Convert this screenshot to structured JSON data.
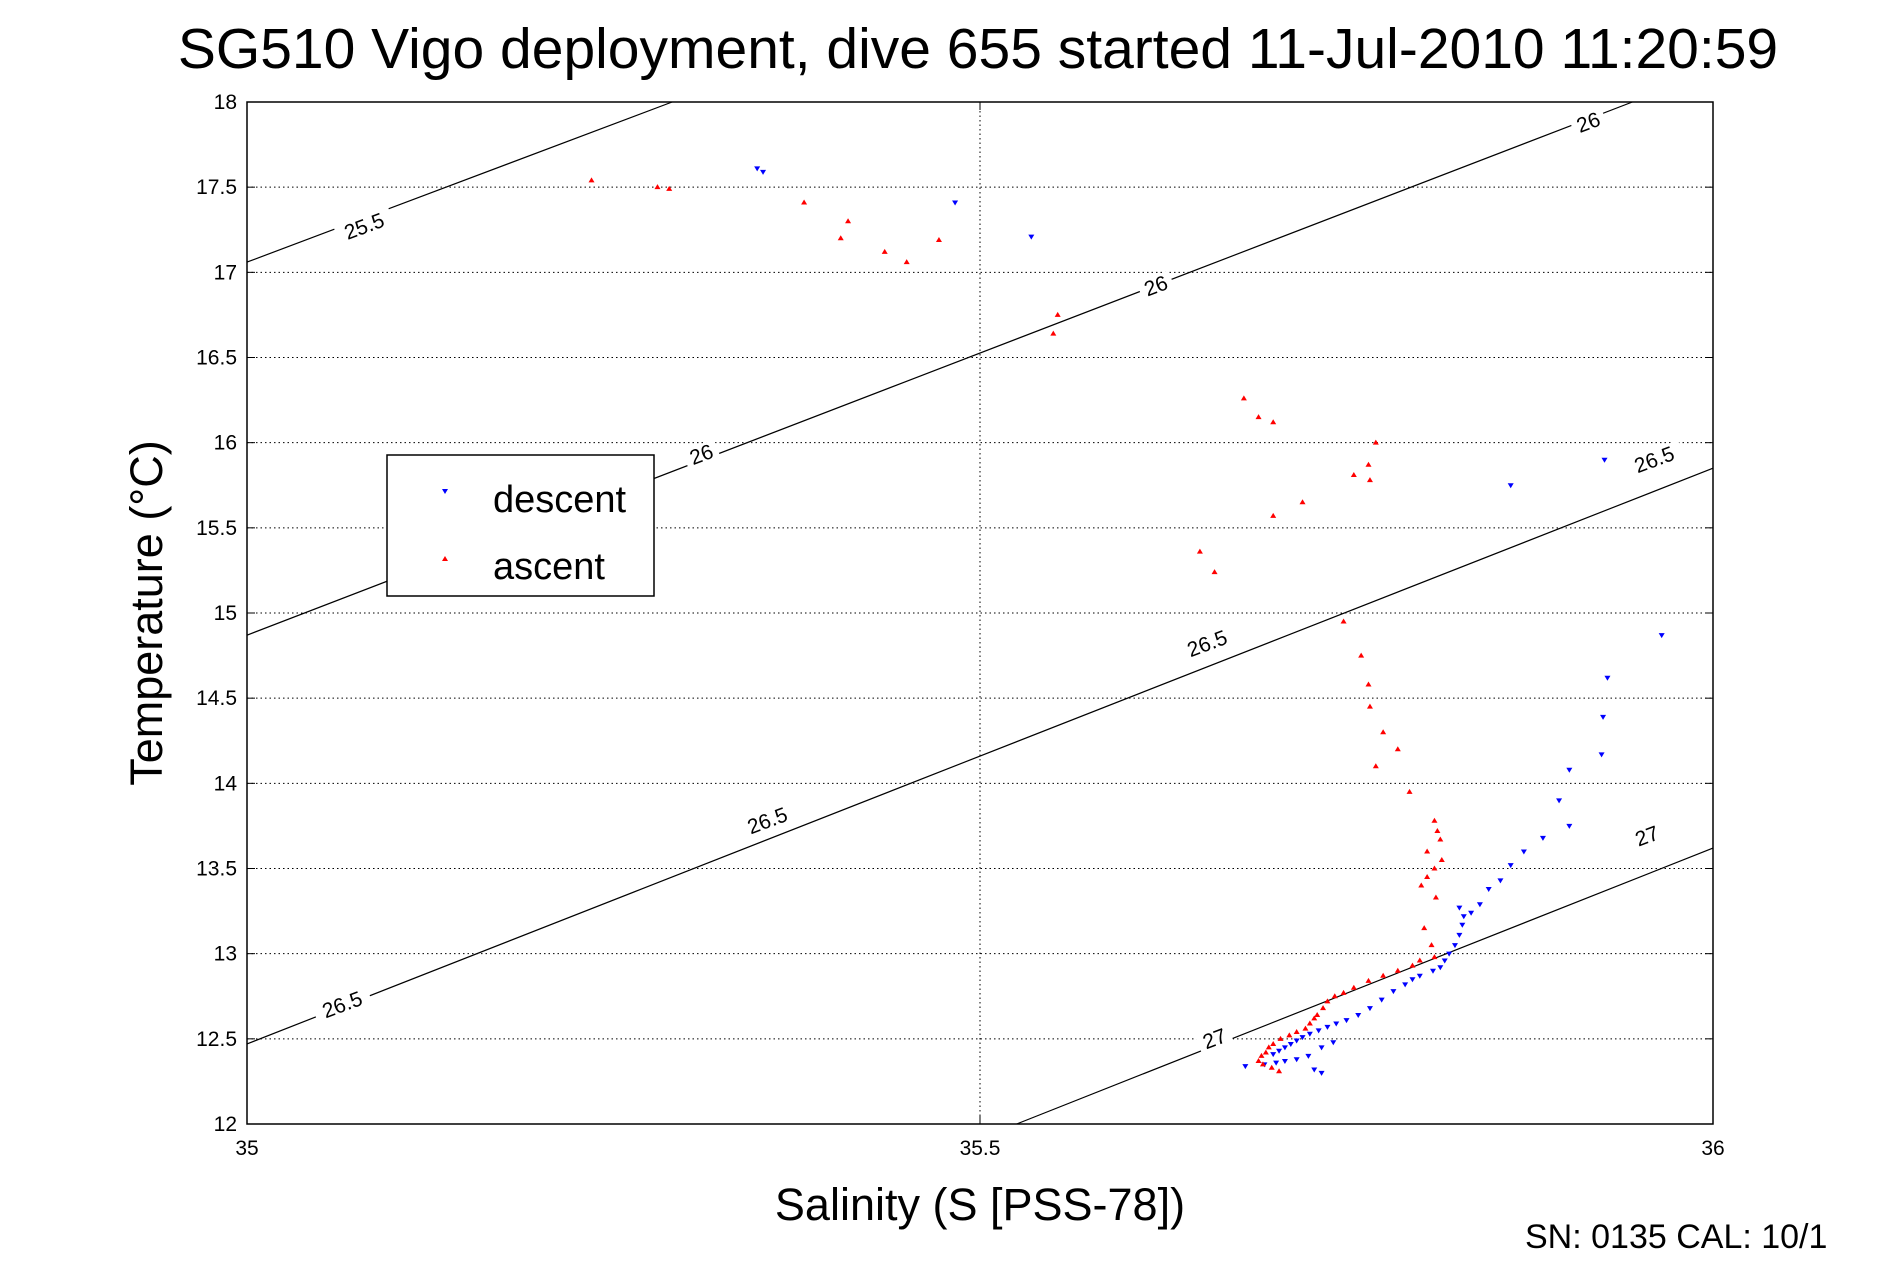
{
  "chart_data": {
    "type": "scatter",
    "title": "SG510 Vigo deployment, dive 655 started 11-Jul-2010 11:20:59",
    "xlabel": "Salinity (S [PSS-78])",
    "ylabel": "Temperature (°C)",
    "xlim": [
      35,
      36
    ],
    "ylim": [
      12,
      18
    ],
    "x_ticks": [
      "35",
      "35.5",
      "36"
    ],
    "y_ticks": [
      "12",
      "12.5",
      "13",
      "13.5",
      "14",
      "14.5",
      "15",
      "15.5",
      "16",
      "16.5",
      "17",
      "17.5",
      "18"
    ],
    "grid": "dotted",
    "legend_position": "left",
    "footer": "SN: 0135  CAL: 10/1",
    "density_contours": [
      {
        "sigma": "25.5",
        "start": [
          35.0,
          17.06
        ],
        "end": [
          35.29,
          18.0
        ]
      },
      {
        "sigma": "26",
        "start": [
          35.0,
          14.87
        ],
        "end": [
          35.945,
          18.0
        ]
      },
      {
        "sigma": "26.5",
        "start": [
          35.0,
          12.47
        ],
        "end": [
          36.0,
          15.85
        ]
      },
      {
        "sigma": "27",
        "start": [
          35.525,
          12.0
        ],
        "end": [
          36.0,
          13.62
        ]
      }
    ],
    "contour_labels": [
      {
        "text": "25.5",
        "x": 35.08,
        "y": 17.27
      },
      {
        "text": "26",
        "x": 35.62,
        "y": 16.92
      },
      {
        "text": "26",
        "x": 35.31,
        "y": 15.93
      },
      {
        "text": "26",
        "x": 35.915,
        "y": 17.88
      },
      {
        "text": "26.5",
        "x": 35.065,
        "y": 12.7
      },
      {
        "text": "26.5",
        "x": 35.355,
        "y": 13.78
      },
      {
        "text": "26.5",
        "x": 35.655,
        "y": 14.82
      },
      {
        "text": "26.5",
        "x": 35.96,
        "y": 15.9
      },
      {
        "text": "27",
        "x": 35.66,
        "y": 12.5
      },
      {
        "text": "27",
        "x": 35.955,
        "y": 13.69
      }
    ],
    "series": [
      {
        "name": "descent",
        "color": "#0000ff",
        "marker": "triangle-down",
        "points": [
          [
            35.348,
            17.61
          ],
          [
            35.352,
            17.59
          ],
          [
            35.483,
            17.41
          ],
          [
            35.535,
            17.21
          ],
          [
            35.862,
            15.75
          ],
          [
            35.926,
            15.9
          ],
          [
            35.965,
            14.87
          ],
          [
            35.928,
            14.62
          ],
          [
            35.925,
            14.39
          ],
          [
            35.924,
            14.17
          ],
          [
            35.902,
            14.08
          ],
          [
            35.895,
            13.9
          ],
          [
            35.902,
            13.75
          ],
          [
            35.884,
            13.68
          ],
          [
            35.871,
            13.6
          ],
          [
            35.862,
            13.52
          ],
          [
            35.855,
            13.43
          ],
          [
            35.847,
            13.38
          ],
          [
            35.841,
            13.29
          ],
          [
            35.835,
            13.24
          ],
          [
            35.827,
            13.27
          ],
          [
            35.83,
            13.22
          ],
          [
            35.829,
            13.17
          ],
          [
            35.827,
            13.11
          ],
          [
            35.824,
            13.05
          ],
          [
            35.82,
            13.0
          ],
          [
            35.817,
            12.96
          ],
          [
            35.814,
            12.92
          ],
          [
            35.809,
            12.9
          ],
          [
            35.8,
            12.87
          ],
          [
            35.795,
            12.85
          ],
          [
            35.79,
            12.82
          ],
          [
            35.782,
            12.78
          ],
          [
            35.774,
            12.73
          ],
          [
            35.766,
            12.68
          ],
          [
            35.758,
            12.64
          ],
          [
            35.75,
            12.61
          ],
          [
            35.743,
            12.59
          ],
          [
            35.737,
            12.57
          ],
          [
            35.731,
            12.55
          ],
          [
            35.725,
            12.53
          ],
          [
            35.72,
            12.51
          ],
          [
            35.716,
            12.49
          ],
          [
            35.712,
            12.47
          ],
          [
            35.708,
            12.45
          ],
          [
            35.704,
            12.43
          ],
          [
            35.7,
            12.41
          ],
          [
            35.724,
            12.4
          ],
          [
            35.716,
            12.38
          ],
          [
            35.708,
            12.37
          ],
          [
            35.702,
            12.36
          ],
          [
            35.733,
            12.45
          ],
          [
            35.741,
            12.48
          ],
          [
            35.694,
            12.35
          ],
          [
            35.681,
            12.34
          ],
          [
            35.728,
            12.32
          ],
          [
            35.733,
            12.3
          ]
        ]
      },
      {
        "name": "ascent",
        "color": "#ff0000",
        "marker": "triangle-up",
        "points": [
          [
            35.235,
            17.54
          ],
          [
            35.28,
            17.5
          ],
          [
            35.288,
            17.49
          ],
          [
            35.38,
            17.41
          ],
          [
            35.41,
            17.3
          ],
          [
            35.405,
            17.2
          ],
          [
            35.435,
            17.12
          ],
          [
            35.45,
            17.06
          ],
          [
            35.472,
            17.19
          ],
          [
            35.553,
            16.75
          ],
          [
            35.55,
            16.64
          ],
          [
            35.68,
            16.26
          ],
          [
            35.69,
            16.15
          ],
          [
            35.7,
            16.12
          ],
          [
            35.77,
            16.0
          ],
          [
            35.765,
            15.87
          ],
          [
            35.755,
            15.81
          ],
          [
            35.766,
            15.78
          ],
          [
            35.72,
            15.65
          ],
          [
            35.7,
            15.57
          ],
          [
            35.65,
            15.36
          ],
          [
            35.66,
            15.24
          ],
          [
            35.748,
            14.95
          ],
          [
            35.76,
            14.75
          ],
          [
            35.765,
            14.58
          ],
          [
            35.766,
            14.45
          ],
          [
            35.775,
            14.3
          ],
          [
            35.785,
            14.2
          ],
          [
            35.77,
            14.1
          ],
          [
            35.793,
            13.95
          ],
          [
            35.81,
            13.78
          ],
          [
            35.812,
            13.72
          ],
          [
            35.814,
            13.67
          ],
          [
            35.805,
            13.6
          ],
          [
            35.815,
            13.55
          ],
          [
            35.81,
            13.5
          ],
          [
            35.805,
            13.45
          ],
          [
            35.801,
            13.4
          ],
          [
            35.811,
            13.33
          ],
          [
            35.803,
            13.15
          ],
          [
            35.808,
            13.05
          ],
          [
            35.81,
            12.98
          ],
          [
            35.8,
            12.96
          ],
          [
            35.795,
            12.93
          ],
          [
            35.785,
            12.9
          ],
          [
            35.775,
            12.87
          ],
          [
            35.765,
            12.84
          ],
          [
            35.755,
            12.8
          ],
          [
            35.748,
            12.77
          ],
          [
            35.742,
            12.75
          ],
          [
            35.737,
            12.72
          ],
          [
            35.734,
            12.68
          ],
          [
            35.73,
            12.64
          ],
          [
            35.728,
            12.62
          ],
          [
            35.725,
            12.59
          ],
          [
            35.722,
            12.56
          ],
          [
            35.716,
            12.54
          ],
          [
            35.711,
            12.52
          ],
          [
            35.705,
            12.5
          ],
          [
            35.7,
            12.47
          ],
          [
            35.697,
            12.45
          ],
          [
            35.695,
            12.42
          ],
          [
            35.692,
            12.4
          ],
          [
            35.69,
            12.37
          ],
          [
            35.693,
            12.35
          ],
          [
            35.699,
            12.33
          ],
          [
            35.704,
            12.31
          ]
        ]
      }
    ]
  }
}
